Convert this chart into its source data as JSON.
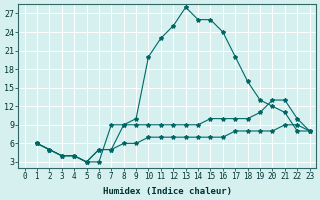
{
  "xlabel": "Humidex (Indice chaleur)",
  "background_color": "#d6f0f0",
  "grid_color": "#ffffff",
  "line_color": "#006666",
  "xlim": [
    -0.5,
    23.5
  ],
  "ylim": [
    2,
    28.5
  ],
  "xticks": [
    0,
    1,
    2,
    3,
    4,
    5,
    6,
    7,
    8,
    9,
    10,
    11,
    12,
    13,
    14,
    15,
    16,
    17,
    18,
    19,
    20,
    21,
    22,
    23
  ],
  "yticks": [
    3,
    6,
    9,
    12,
    15,
    18,
    21,
    24,
    27
  ],
  "line1_x": [
    1,
    2,
    3,
    4,
    5,
    6,
    7,
    8,
    9,
    10,
    11,
    12,
    13,
    14,
    15,
    16,
    17,
    18,
    19,
    20,
    21,
    22,
    23
  ],
  "line1_y": [
    6,
    5,
    4,
    4,
    3,
    3,
    9,
    9,
    10,
    20,
    23,
    25,
    28,
    26,
    26,
    24,
    20,
    16,
    13,
    12,
    11,
    8,
    8
  ],
  "line2_x": [
    1,
    2,
    3,
    4,
    5,
    6,
    7,
    8,
    9,
    10,
    11,
    12,
    13,
    14,
    15,
    16,
    17,
    18,
    19,
    20,
    21,
    22,
    23
  ],
  "line2_y": [
    6,
    5,
    4,
    4,
    3,
    5,
    5,
    9,
    9,
    9,
    9,
    9,
    9,
    9,
    10,
    10,
    10,
    10,
    11,
    13,
    13,
    10,
    8
  ],
  "line3_x": [
    1,
    2,
    3,
    4,
    5,
    6,
    7,
    8,
    9,
    10,
    11,
    12,
    13,
    14,
    15,
    16,
    17,
    18,
    19,
    20,
    21,
    22,
    23
  ],
  "line3_y": [
    6,
    5,
    4,
    4,
    3,
    5,
    5,
    6,
    6,
    7,
    7,
    7,
    7,
    7,
    7,
    7,
    8,
    8,
    8,
    8,
    9,
    9,
    8
  ]
}
